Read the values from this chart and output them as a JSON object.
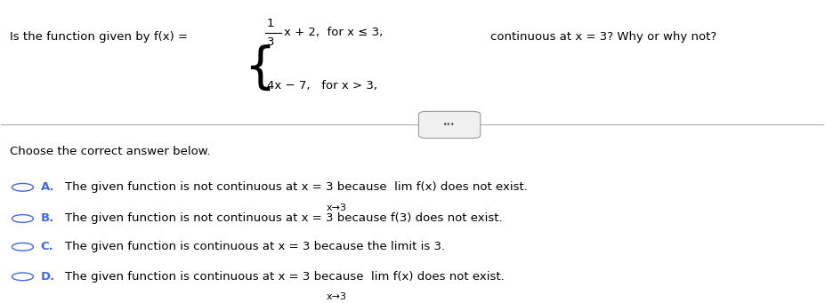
{
  "bg_color": "#ffffff",
  "text_color": "#000000",
  "blue_color": "#4169E1",
  "question_prefix": "Is the function given by f(x) =",
  "func1_frac_num": "1",
  "func1_frac_den": "3",
  "func1_rest": "x + 2,  for x ≤ 3,",
  "func2": "4x − 7,   for x > 3,",
  "question_suffix": "continuous at x = 3? Why or why not?",
  "divider_label": "•••",
  "section_label": "Choose the correct answer below.",
  "optA_letter": "A.",
  "optA_text": "The given function is not continuous at x = 3 because  lim f(x) does not exist.",
  "optA_sub": "x→3",
  "optB_letter": "B.",
  "optB_text": "The given function is not continuous at x = 3 because f(3) does not exist.",
  "optC_letter": "C.",
  "optC_text": "The given function is continuous at x = 3 because the limit is 3.",
  "optD_letter": "D.",
  "optD_text": "The given function is continuous at x = 3 because  lim f(x) does not exist.",
  "optD_sub": "x→3",
  "font_size_main": 9.5,
  "font_size_sub": 8.0,
  "line_color": "#aaaaaa",
  "btn_edge_color": "#999999",
  "btn_face_color": "#f0f0f0"
}
